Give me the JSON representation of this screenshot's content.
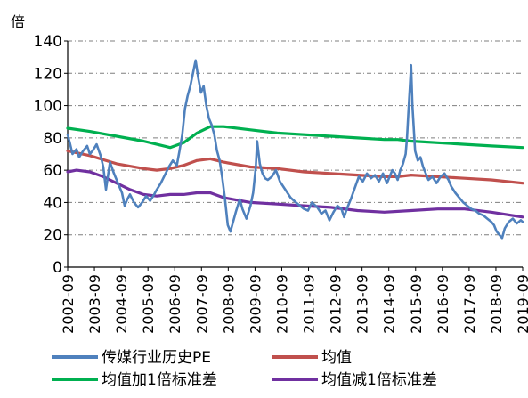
{
  "chart_data": {
    "type": "line",
    "title": "",
    "ylabel": "倍",
    "xlabel": "",
    "ylim": [
      0,
      140
    ],
    "yticks": [
      0,
      20,
      40,
      60,
      80,
      100,
      120,
      140
    ],
    "grid": "horizontal-dashed",
    "legend_position": "bottom",
    "x_tick_labels": [
      "2002-09",
      "2003-09",
      "2004-09",
      "2005-09",
      "2006-09",
      "2007-09",
      "2008-09",
      "2009-09",
      "2010-09",
      "2011-09",
      "2012-09",
      "2013-09",
      "2014-09",
      "2015-09",
      "2016-09",
      "2017-09",
      "2018-09",
      "2019-09"
    ],
    "x_range": [
      2002.67,
      2019.67
    ],
    "series": [
      {
        "name": "传媒行业历史PE",
        "color": "#4f81bd",
        "x": [
          2002.67,
          2002.75,
          2002.85,
          2003.0,
          2003.1,
          2003.25,
          2003.4,
          2003.5,
          2003.6,
          2003.75,
          2003.9,
          2004.0,
          2004.1,
          2004.25,
          2004.4,
          2004.55,
          2004.7,
          2004.8,
          2004.9,
          2005.0,
          2005.15,
          2005.3,
          2005.45,
          2005.6,
          2005.75,
          2005.9,
          2006.0,
          2006.15,
          2006.3,
          2006.45,
          2006.6,
          2006.75,
          2006.85,
          2006.95,
          2007.05,
          2007.15,
          2007.25,
          2007.35,
          2007.45,
          2007.55,
          2007.65,
          2007.75,
          2007.85,
          2007.95,
          2008.05,
          2008.15,
          2008.25,
          2008.35,
          2008.45,
          2008.55,
          2008.65,
          2008.75,
          2008.85,
          2008.95,
          2009.1,
          2009.2,
          2009.35,
          2009.5,
          2009.6,
          2009.7,
          2009.75,
          2009.85,
          2009.95,
          2010.05,
          2010.15,
          2010.3,
          2010.45,
          2010.6,
          2010.8,
          2011.0,
          2011.2,
          2011.35,
          2011.5,
          2011.65,
          2011.8,
          2012.0,
          2012.15,
          2012.3,
          2012.45,
          2012.6,
          2012.75,
          2012.9,
          2013.0,
          2013.1,
          2013.25,
          2013.4,
          2013.55,
          2013.7,
          2013.85,
          2014.0,
          2014.15,
          2014.3,
          2014.45,
          2014.6,
          2014.7,
          2014.8,
          2014.9,
          2015.0,
          2015.1,
          2015.2,
          2015.3,
          2015.35,
          2015.4,
          2015.45,
          2015.5,
          2015.55,
          2015.65,
          2015.75,
          2015.85,
          2015.95,
          2016.05,
          2016.15,
          2016.3,
          2016.45,
          2016.6,
          2016.75,
          2016.9,
          2017.0,
          2017.15,
          2017.3,
          2017.45,
          2017.6,
          2017.75,
          2017.9,
          2018.05,
          2018.2,
          2018.35,
          2018.5,
          2018.6,
          2018.7,
          2018.8,
          2018.9,
          2019.0,
          2019.15,
          2019.3,
          2019.45,
          2019.6,
          2019.67
        ],
        "y": [
          82,
          77,
          70,
          73,
          68,
          72,
          75,
          70,
          72,
          76,
          69,
          62,
          48,
          65,
          58,
          52,
          46,
          38,
          42,
          45,
          40,
          37,
          40,
          44,
          41,
          45,
          48,
          52,
          57,
          62,
          66,
          63,
          72,
          82,
          98,
          106,
          112,
          120,
          128,
          117,
          108,
          112,
          100,
          92,
          88,
          82,
          72,
          66,
          55,
          42,
          26,
          22,
          28,
          34,
          42,
          36,
          30,
          38,
          46,
          62,
          78,
          64,
          58,
          55,
          54,
          56,
          60,
          53,
          48,
          43,
          40,
          38,
          36,
          35,
          40,
          37,
          33,
          35,
          29,
          34,
          38,
          36,
          31,
          36,
          42,
          49,
          56,
          53,
          58,
          55,
          57,
          53,
          58,
          52,
          56,
          60,
          58,
          54,
          60,
          64,
          70,
          80,
          95,
          110,
          125,
          100,
          72,
          66,
          68,
          62,
          58,
          54,
          56,
          52,
          56,
          58,
          54,
          50,
          46,
          43,
          40,
          38,
          36,
          35,
          33,
          32,
          30,
          28,
          26,
          22,
          20,
          18,
          24,
          28,
          30,
          27,
          29,
          28
        ]
      },
      {
        "name": "均值",
        "color": "#c0504d",
        "x": [
          2002.67,
          2003.5,
          2004.5,
          2005.5,
          2006.0,
          2006.5,
          2007.0,
          2007.5,
          2008.0,
          2008.5,
          2009.5,
          2010.5,
          2011.5,
          2012.5,
          2013.5,
          2014.5,
          2015.0,
          2015.5,
          2016.5,
          2017.5,
          2018.5,
          2019.67
        ],
        "y": [
          72,
          69,
          64,
          61,
          60,
          61,
          63,
          66,
          67,
          65,
          62,
          61,
          59,
          58,
          57,
          56,
          56,
          57,
          56,
          55,
          54,
          52
        ]
      },
      {
        "name": "均值加1倍标准差",
        "color": "#00b050",
        "x": [
          2002.67,
          2003.5,
          2004.5,
          2005.5,
          2006.0,
          2006.5,
          2007.0,
          2007.5,
          2008.0,
          2008.5,
          2009.5,
          2010.5,
          2011.5,
          2012.5,
          2013.5,
          2014.5,
          2015.0,
          2015.5,
          2016.5,
          2017.5,
          2018.5,
          2019.67
        ],
        "y": [
          86,
          84,
          81,
          78,
          76,
          74,
          77,
          83,
          87,
          87,
          85,
          83,
          82,
          81,
          80,
          79,
          79,
          78,
          77,
          76,
          75,
          74
        ]
      },
      {
        "name": "均值减1倍标准差",
        "color": "#7030a0",
        "x": [
          2002.67,
          2003.0,
          2003.5,
          2004.0,
          2004.5,
          2005.0,
          2005.5,
          2006.0,
          2006.5,
          2007.0,
          2007.5,
          2008.0,
          2008.5,
          2009.5,
          2010.5,
          2011.5,
          2012.5,
          2013.5,
          2014.5,
          2015.5,
          2016.5,
          2017.5,
          2018.5,
          2019.67
        ],
        "y": [
          59,
          60,
          59,
          56,
          52,
          48,
          45,
          44,
          45,
          45,
          46,
          46,
          43,
          40,
          39,
          38,
          37,
          35,
          34,
          35,
          36,
          36,
          34,
          31
        ]
      }
    ]
  }
}
